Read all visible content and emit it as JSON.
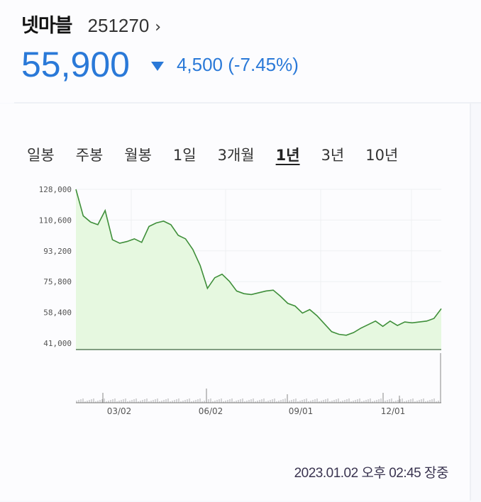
{
  "stock": {
    "name": "넷마블",
    "code": "251270",
    "code_chevron": "›",
    "price": "55,900",
    "direction_icon": "down-triangle-icon",
    "change": "4,500 (-7.45%)",
    "color": "#2a79d8"
  },
  "tabs": [
    {
      "label": "일봉",
      "active": false
    },
    {
      "label": "주봉",
      "active": false
    },
    {
      "label": "월봉",
      "active": false
    },
    {
      "label": "1일",
      "active": false
    },
    {
      "label": "3개월",
      "active": false
    },
    {
      "label": "1년",
      "active": true
    },
    {
      "label": "3년",
      "active": false
    },
    {
      "label": "10년",
      "active": false
    }
  ],
  "timestamp": "2023.01.02  오후 02:45 장중",
  "chart_data": {
    "type": "area",
    "title": "넷마블 251270 1년",
    "xlabel": "",
    "ylabel": "",
    "ylim": [
      41000,
      128000
    ],
    "yticks": [
      "128,000",
      "110,600",
      "93,200",
      "75,800",
      "58,400",
      "41,000"
    ],
    "xticks": [
      "03/02",
      "06/02",
      "09/01",
      "12/01"
    ],
    "grid": true,
    "line_color": "#3f8f3a",
    "fill_color": "#e6f8e0",
    "x": [
      0,
      2,
      4,
      6,
      8,
      10,
      12,
      14,
      16,
      18,
      20,
      22,
      24,
      26,
      28,
      30,
      32,
      34,
      36,
      38,
      40,
      42,
      44,
      46,
      48,
      50,
      52,
      54,
      56,
      58,
      60,
      62,
      64,
      66,
      68,
      70,
      72,
      74,
      76,
      78,
      80,
      82,
      84,
      86,
      88,
      90,
      92,
      94,
      96,
      98,
      100
    ],
    "values": [
      128000,
      113000,
      109500,
      108000,
      116000,
      99500,
      97500,
      98500,
      100000,
      98000,
      107000,
      109000,
      110000,
      108000,
      102000,
      100000,
      94000,
      85000,
      72000,
      78000,
      80000,
      76000,
      70500,
      69000,
      68500,
      69500,
      70500,
      71000,
      67500,
      63500,
      62000,
      58000,
      60000,
      56500,
      52000,
      47500,
      46000,
      45500,
      47000,
      49500,
      51500,
      53500,
      50500,
      53500,
      51000,
      53000,
      52500,
      53000,
      53500,
      55000,
      60500
    ],
    "volume_axis": {
      "xticks": [
        "03/02",
        "06/02",
        "09/01",
        "12/01"
      ]
    }
  }
}
